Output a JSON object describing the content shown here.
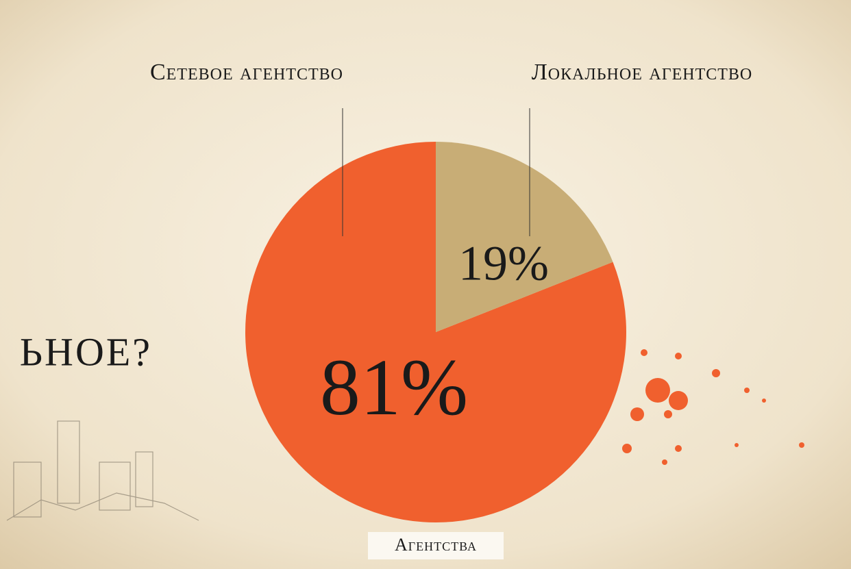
{
  "chart_data": {
    "type": "pie",
    "title": "Агентства",
    "annotation": "ЬНОЕ?",
    "categories": [
      "Сетевое агентство",
      "Локальное агентство"
    ],
    "values": [
      81,
      19
    ],
    "value_labels": [
      "81%",
      "19%"
    ],
    "colors": [
      "#f0602e",
      "#c8ad76"
    ]
  }
}
